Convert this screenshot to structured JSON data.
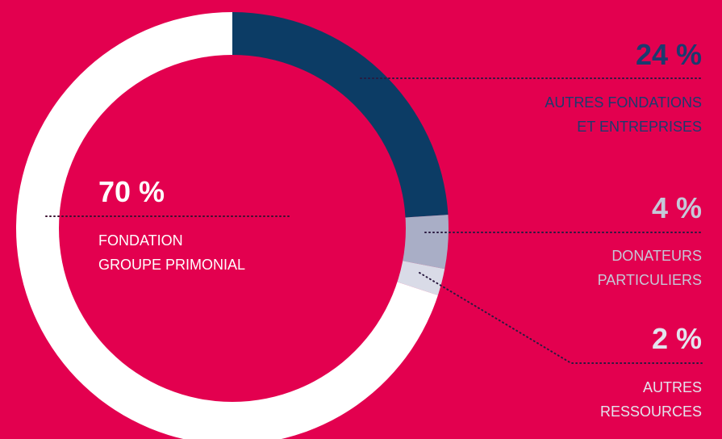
{
  "chart_data": {
    "type": "pie",
    "donut": true,
    "categories": [
      "FONDATION\nGROUPE PRIMONIAL",
      "AUTRES FONDATIONS\nET ENTREPRISES",
      "DONATEURS\nPARTICULIERS",
      "AUTRES\nRESSOURCES"
    ],
    "values": [
      70,
      24,
      4,
      2
    ],
    "value_labels": [
      "70 %",
      "24 %",
      "4 %",
      "2 %"
    ],
    "colors": [
      "#ffffff",
      "#0c3c65",
      "#a9aec6",
      "#d9dbe7"
    ],
    "label_colors": [
      "#ffffff",
      "#1c3a6e",
      "#c5c8d8",
      "#e3e4ee"
    ],
    "background": "#e3004f"
  }
}
